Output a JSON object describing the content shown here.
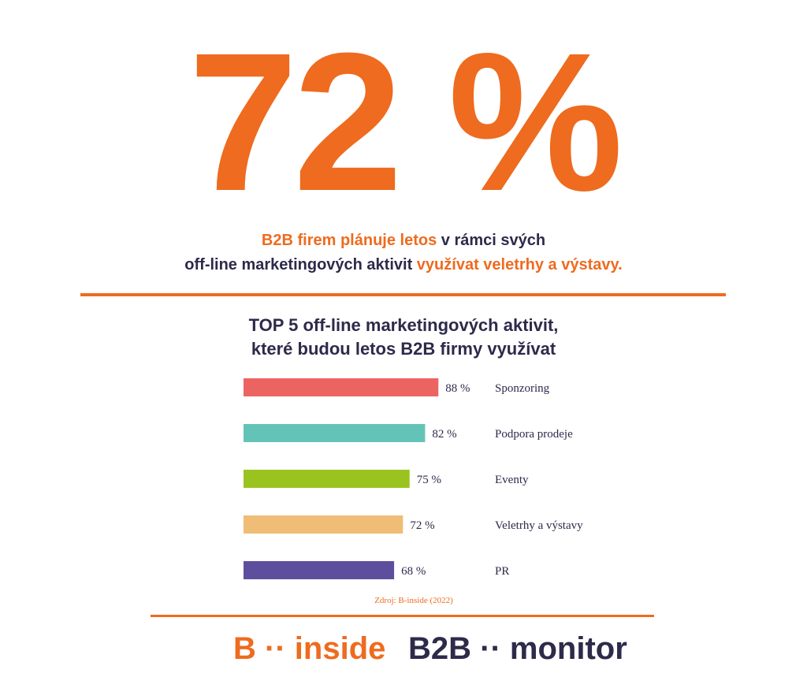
{
  "headline": {
    "value": "72 %"
  },
  "description": {
    "line1_part1": "B2B firem plánuje letos",
    "line1_part2": " v rámci svých",
    "line2_part1": "off-line marketingových aktivit ",
    "line2_part2": "využívat  veletrhy a výstavy."
  },
  "chart_data": {
    "type": "bar",
    "orientation": "horizontal",
    "title_line1": "TOP 5 off-line marketingových aktivit,",
    "title_line2": "které budou letos B2B firmy využívat",
    "categories": [
      "Sponzoring",
      "Podpora prodeje",
      "Eventy",
      "Veletrhy a výstavy",
      "PR"
    ],
    "values": [
      88,
      82,
      75,
      72,
      68
    ],
    "value_labels": [
      "88 %",
      "82 %",
      "75 %",
      "72 %",
      "68 %"
    ],
    "colors": [
      "#EC6462",
      "#64C3B7",
      "#9BC31F",
      "#EFBD76",
      "#5E4E9E"
    ],
    "xlim": [
      0,
      100
    ],
    "grid": false,
    "legend": "none",
    "source": "Zdroj: B-inside (2022)"
  },
  "logos": {
    "left_a": "B",
    "left_dots": "··",
    "left_b": "inside",
    "right_a": "B2B",
    "right_dots": "··",
    "right_b": "monitor"
  },
  "colors": {
    "accent": "#EE6B1F",
    "text": "#2D2A4A"
  }
}
